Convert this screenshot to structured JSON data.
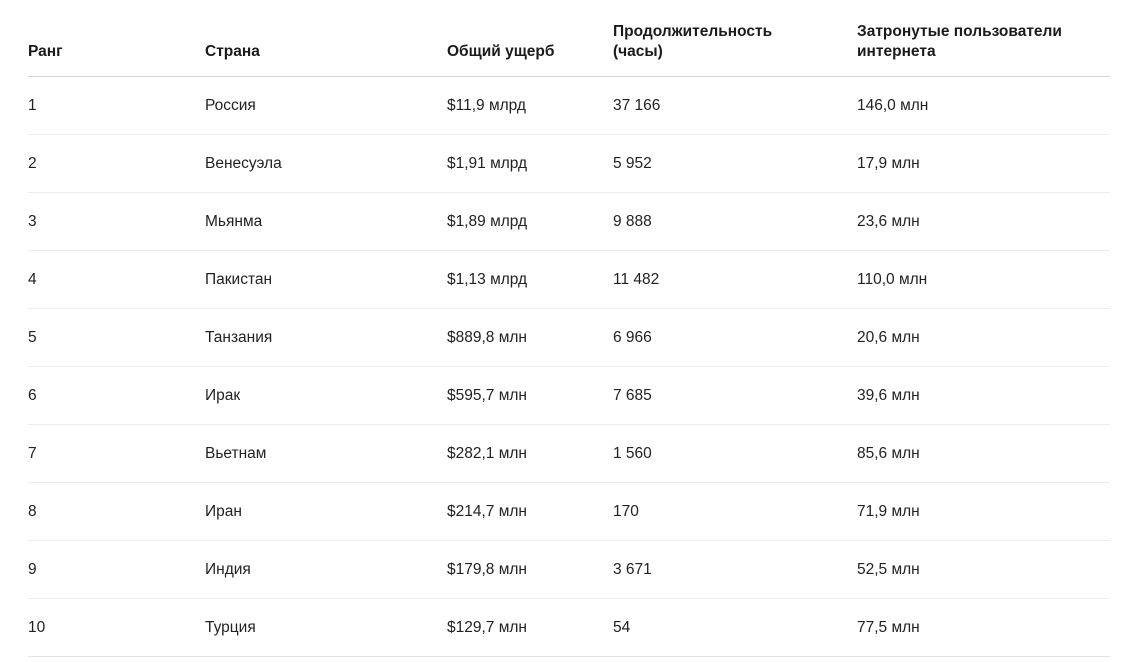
{
  "chart_data": {
    "type": "table",
    "title": "",
    "columns": [
      "Ранг",
      "Страна",
      "Общий ущерб",
      "Продолжительность (часы)",
      "Затронутые пользователи интернета"
    ],
    "column_keys": [
      "rank",
      "country",
      "total-damage",
      "duration-hours",
      "affected-internet-users"
    ],
    "rows": [
      [
        "1",
        "Россия",
        "$11,9 млрд",
        "37 166",
        "146,0 млн"
      ],
      [
        "2",
        "Венесуэла",
        "$1,91 млрд",
        "5 952",
        "17,9 млн"
      ],
      [
        "3",
        "Мьянма",
        "$1,89 млрд",
        "9 888",
        "23,6 млн"
      ],
      [
        "4",
        "Пакистан",
        "$1,13 млрд",
        "11 482",
        "110,0 млн"
      ],
      [
        "5",
        "Танзания",
        "$889,8 млн",
        "6 966",
        "20,6 млн"
      ],
      [
        "6",
        "Ирак",
        "$595,7 млн",
        "7 685",
        "39,6 млн"
      ],
      [
        "7",
        "Вьетнам",
        "$282,1 млн",
        "1 560",
        "85,6 млн"
      ],
      [
        "8",
        "Иран",
        "$214,7 млн",
        "170",
        "71,9 млн"
      ],
      [
        "9",
        "Индия",
        "$179,8 млн",
        "3 671",
        "52,5 млн"
      ],
      [
        "10",
        "Турция",
        "$129,7 млн",
        "54",
        "77,5 млн"
      ]
    ],
    "legend": "off",
    "grid": "horizontal-row-dividers"
  },
  "colors": {
    "background": "#ffffff",
    "text": "#222222",
    "header_text": "#1b1b1b",
    "header_border": "#d4d4d4",
    "row_border": "#ededed"
  }
}
